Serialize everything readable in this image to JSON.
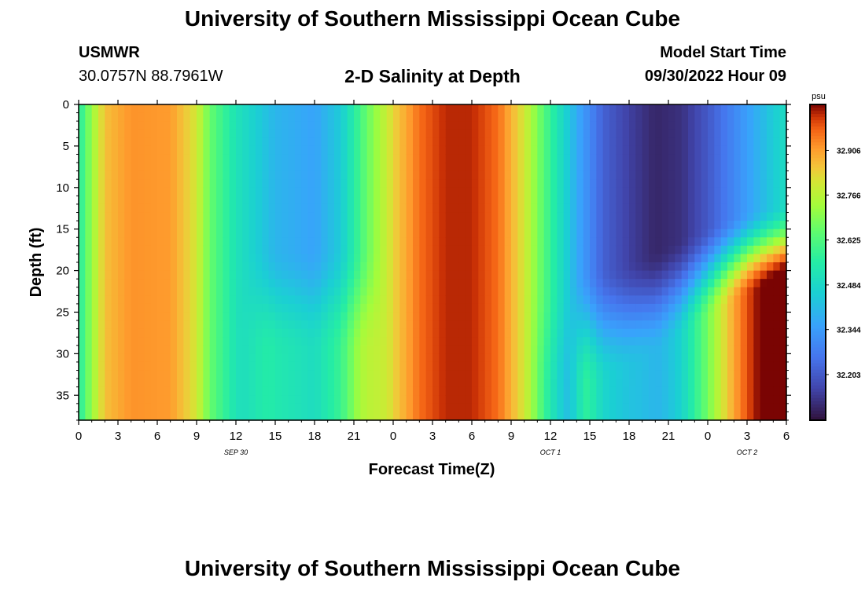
{
  "header": {
    "title": "University of Southern Mississippi Ocean Cube",
    "station": "USMWR",
    "coords": "30.0757N  88.7961W",
    "subtitle": "2-D Salinity at Depth",
    "model_start_label": "Model Start Time",
    "model_start_value": "09/30/2022 Hour 09"
  },
  "footer": {
    "title": "University of Southern Mississippi Ocean Cube"
  },
  "chart_data": {
    "type": "heatmap",
    "title": "2-D Salinity at Depth",
    "xlabel": "Forecast Time(Z)",
    "ylabel": "Depth (ft)",
    "x_tick_labels": [
      "0",
      "3",
      "6",
      "9",
      "12",
      "15",
      "18",
      "21",
      "0",
      "3",
      "6",
      "9",
      "12",
      "15",
      "18",
      "21",
      "0",
      "3",
      "6"
    ],
    "x_date_labels": [
      {
        "label": "SEP 30",
        "at_hour": 12
      },
      {
        "label": "OCT 1",
        "at_hour": 36
      },
      {
        "label": "OCT 2",
        "at_hour": 51
      }
    ],
    "x_range_hours": [
      0,
      54
    ],
    "y_ticks": [
      0,
      5,
      10,
      15,
      20,
      25,
      30,
      35
    ],
    "y_range": [
      0,
      38
    ],
    "y_inverted": true,
    "colorbar": {
      "unit": "psu",
      "ticks": [
        32.906,
        32.766,
        32.625,
        32.484,
        32.344,
        32.203
      ],
      "range": [
        32.06,
        33.05
      ],
      "colormap": "turbo"
    },
    "surface_series_psu": [
      {
        "hour": 0,
        "value": 32.55
      },
      {
        "hour": 1,
        "value": 32.72
      },
      {
        "hour": 2,
        "value": 32.86
      },
      {
        "hour": 4,
        "value": 32.92
      },
      {
        "hour": 7,
        "value": 32.91
      },
      {
        "hour": 9,
        "value": 32.8
      },
      {
        "hour": 10,
        "value": 32.66
      },
      {
        "hour": 12,
        "value": 32.52
      },
      {
        "hour": 15,
        "value": 32.4
      },
      {
        "hour": 18,
        "value": 32.36
      },
      {
        "hour": 20,
        "value": 32.45
      },
      {
        "hour": 22,
        "value": 32.66
      },
      {
        "hour": 24,
        "value": 32.83
      },
      {
        "hour": 26,
        "value": 32.96
      },
      {
        "hour": 28,
        "value": 33.02
      },
      {
        "hour": 30,
        "value": 33.02
      },
      {
        "hour": 32,
        "value": 32.96
      },
      {
        "hour": 34,
        "value": 32.8
      },
      {
        "hour": 36,
        "value": 32.58
      },
      {
        "hour": 38,
        "value": 32.38
      },
      {
        "hour": 40,
        "value": 32.22
      },
      {
        "hour": 42,
        "value": 32.15
      },
      {
        "hour": 44,
        "value": 32.1
      },
      {
        "hour": 46,
        "value": 32.12
      },
      {
        "hour": 48,
        "value": 32.2
      },
      {
        "hour": 50,
        "value": 32.3
      },
      {
        "hour": 52,
        "value": 32.4
      },
      {
        "hour": 54,
        "value": 32.5
      }
    ]
  }
}
